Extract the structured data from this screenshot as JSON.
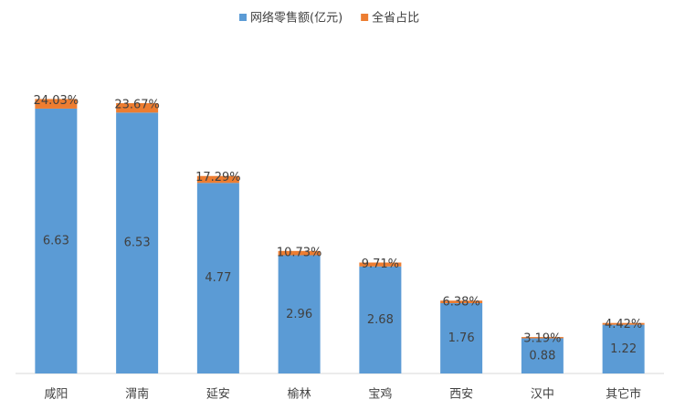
{
  "chart_data": {
    "type": "stacked_bar",
    "categories": [
      "咸阳",
      "渭南",
      "延安",
      "榆林",
      "宝鸡",
      "西安",
      "汉中",
      "其它市"
    ],
    "series": [
      {
        "name": "网络零售额(亿元)",
        "color": "#5b9bd5",
        "values": [
          6.63,
          6.53,
          4.77,
          2.96,
          2.68,
          1.76,
          0.88,
          1.22
        ]
      },
      {
        "name": "全省占比",
        "color": "#ed7d31",
        "values": [
          0.2403,
          0.2367,
          0.1729,
          0.1073,
          0.0971,
          0.0638,
          0.0319,
          0.0442
        ],
        "value_labels": [
          "24.03%",
          "23.67%",
          "17.29%",
          "10.73%",
          "9.71%",
          "6.38%",
          "3.19%",
          "4.42%"
        ]
      }
    ],
    "ylim": [
      0,
      8
    ],
    "legend": "top"
  }
}
